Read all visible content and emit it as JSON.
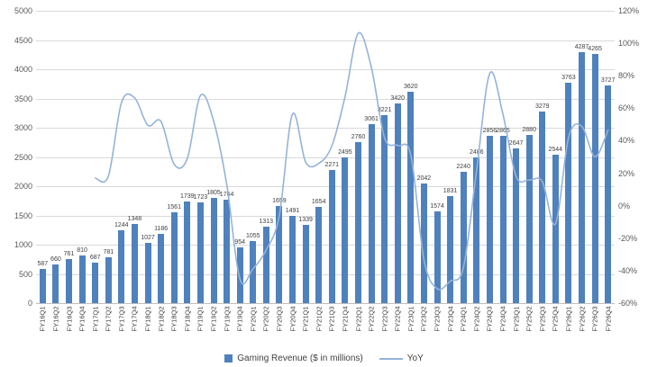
{
  "chart_data": {
    "type": "bar",
    "subtype": "combo-bar-line",
    "title": "",
    "categories": [
      "FY16Q1",
      "FY16Q2",
      "FY16Q3",
      "FY16Q4",
      "FY17Q1",
      "FY17Q2",
      "FY17Q3",
      "FY17Q4",
      "FY18Q1",
      "FY18Q2",
      "FY18Q3",
      "FY18Q4",
      "FY19Q1",
      "FY19Q2",
      "FY19Q3",
      "FY19Q4",
      "FY20Q1",
      "FY20Q2",
      "FY20Q3",
      "FY20Q4",
      "FY21Q1",
      "FY21Q2",
      "FY21Q3",
      "FY21Q4",
      "FY22Q1",
      "FY22Q2",
      "FY22Q3",
      "FY22Q4",
      "FY23Q1",
      "FY23Q2",
      "FY23Q3",
      "FY23Q4",
      "FY24Q1",
      "FY24Q2",
      "FY24Q3",
      "FY24Q4",
      "FY25Q1",
      "FY25Q2",
      "FY25Q3",
      "FY25Q4",
      "FY26Q1",
      "FY26Q2",
      "FY26Q3",
      "FY26Q4"
    ],
    "series": [
      {
        "name": "Gaming Revenue ($ in millions)",
        "type": "bar",
        "axis": "left",
        "color": "#4F81BD",
        "values": [
          587,
          660,
          761,
          810,
          687,
          781,
          1244,
          1348,
          1027,
          1186,
          1561,
          1739,
          1723,
          1805,
          1764,
          954,
          1055,
          1313,
          1659,
          1491,
          1339,
          1654,
          2271,
          2495,
          2760,
          3061,
          3221,
          3420,
          3620,
          2042,
          1574,
          1831,
          2240,
          2486,
          2856,
          2865,
          2647,
          2880,
          3279,
          2544,
          3763,
          4287,
          4265,
          3727
        ],
        "data_labels": true
      },
      {
        "name": "YoY",
        "type": "line",
        "axis": "right",
        "color": "#95B3D7",
        "start_index": 4,
        "values_pct": [
          17.0,
          18.3,
          63.5,
          66.4,
          49.5,
          51.9,
          25.5,
          29.0,
          67.8,
          52.2,
          13.0,
          -45.1,
          -38.8,
          -27.3,
          -6.0,
          56.3,
          26.9,
          26.0,
          36.9,
          67.3,
          106.1,
          85.1,
          41.8,
          37.1,
          31.2,
          -33.3,
          -51.1,
          -46.5,
          -38.1,
          21.7,
          81.4,
          56.5,
          18.2,
          15.8,
          14.8,
          -11.2,
          42.2,
          48.9,
          30.1,
          46.5
        ]
      }
    ],
    "left_axis": {
      "min": 0,
      "max": 5000,
      "step": 500,
      "tick_labels": [
        "5000",
        "4500",
        "4000",
        "3500",
        "3000",
        "2500",
        "2000",
        "1500",
        "1000",
        "500",
        "0"
      ]
    },
    "right_axis": {
      "min": -60,
      "max": 120,
      "step": 20,
      "tick_labels": [
        "120%",
        "100%",
        "80%",
        "60%",
        "40%",
        "20%",
        "0%",
        "-20%",
        "-40%",
        "-60%"
      ]
    },
    "grid": true,
    "legend_position": "bottom"
  },
  "colors": {
    "bar": "#4F81BD",
    "line": "#95B3D7",
    "grid": "#D9D9D9",
    "axis_base": "#BFBFBF",
    "axis_text": "#595959",
    "data_label": "#404040",
    "background": "#FFFFFF"
  }
}
